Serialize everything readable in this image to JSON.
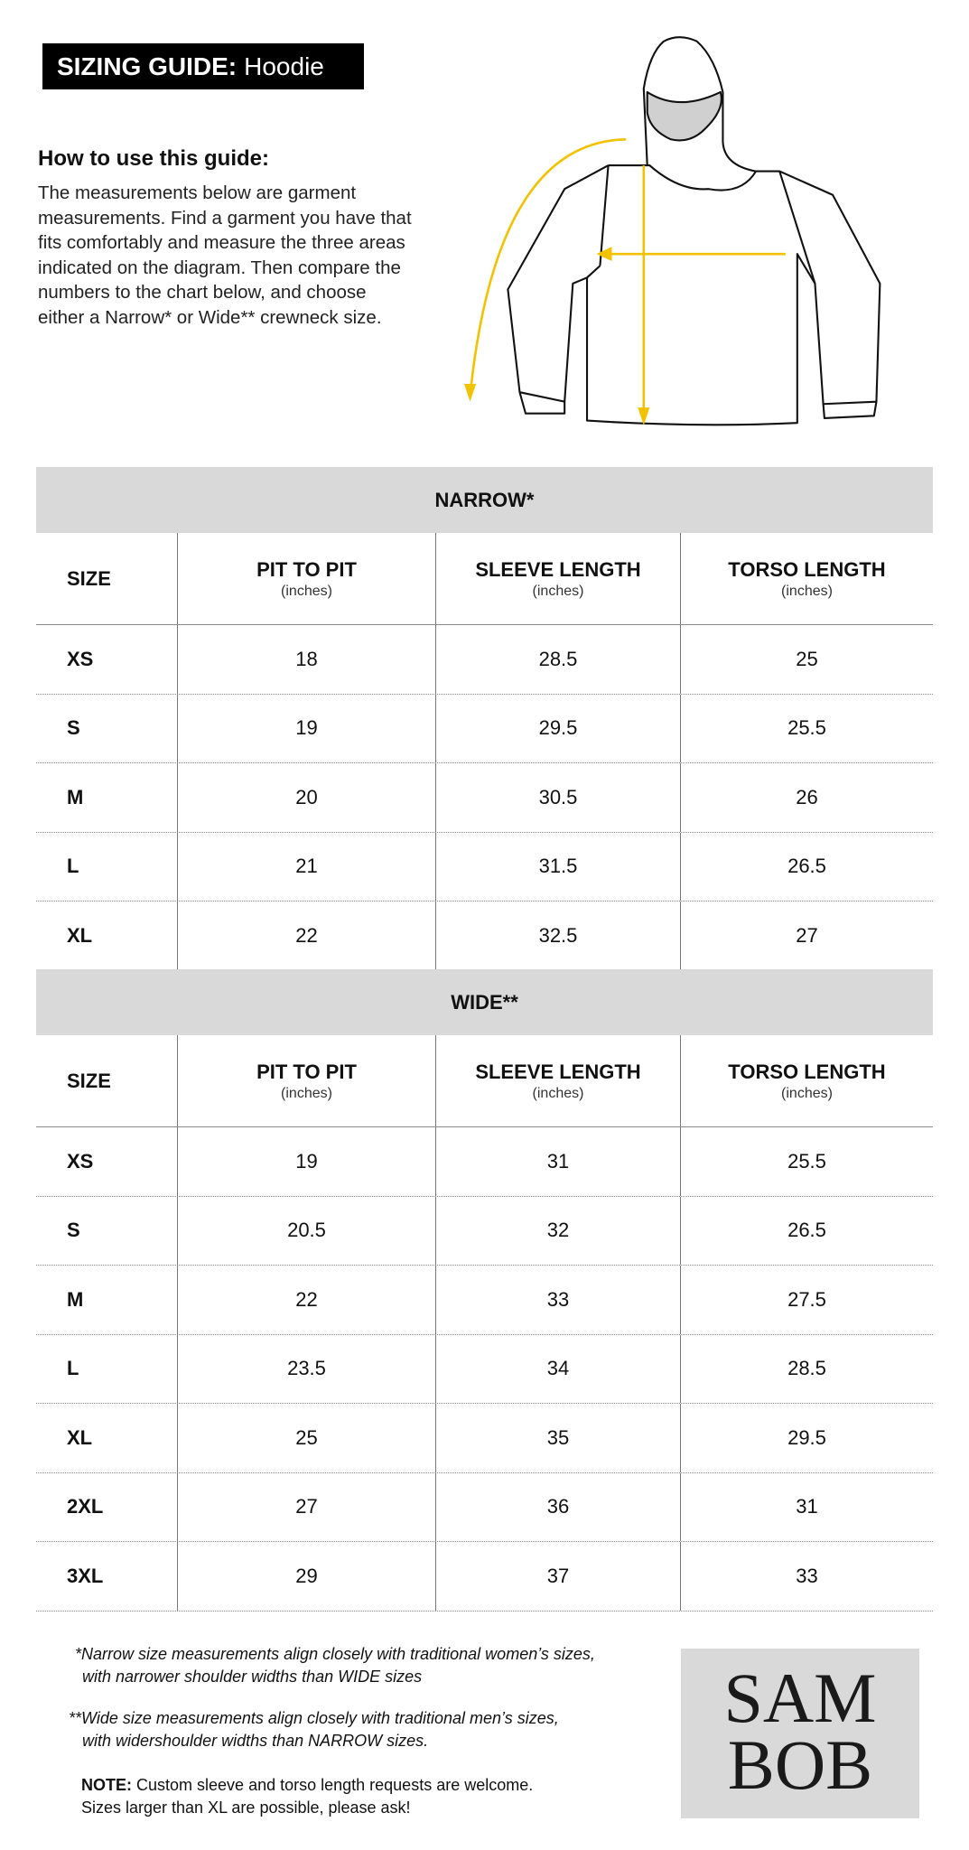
{
  "header": {
    "title_bold": "SIZING GUIDE:",
    "title_rest": "Hoodie"
  },
  "intro": {
    "heading": "How to use this guide:",
    "body": "The measurements below are garment measurements. Find a garment you have that fits comfortably and measure the three areas indicated on the diagram. Then compare the numbers to the chart below, and choose either a Narrow* or Wide** crewneck size."
  },
  "colors": {
    "arrow": "#f2c200",
    "band": "#d9d9d9"
  },
  "columns": {
    "size": "SIZE",
    "pit": "PIT TO PIT",
    "sleeve": "SLEEVE LENGTH",
    "torso": "TORSO LENGTH",
    "unit": "(inches)"
  },
  "narrow": {
    "title": "NARROW*",
    "rows": [
      [
        "XS",
        "18",
        "28.5",
        "25"
      ],
      [
        "S",
        "19",
        "29.5",
        "25.5"
      ],
      [
        "M",
        "20",
        "30.5",
        "26"
      ],
      [
        "L",
        "21",
        "31.5",
        "26.5"
      ],
      [
        "XL",
        "22",
        "32.5",
        "27"
      ]
    ]
  },
  "wide": {
    "title": "WIDE**",
    "rows": [
      [
        "XS",
        "19",
        "31",
        "25.5"
      ],
      [
        "S",
        "20.5",
        "32",
        "26.5"
      ],
      [
        "M",
        "22",
        "33",
        "27.5"
      ],
      [
        "L",
        "23.5",
        "34",
        "28.5"
      ],
      [
        "XL",
        "25",
        "35",
        "29.5"
      ],
      [
        "2XL",
        "27",
        "36",
        "31"
      ],
      [
        "3XL",
        "29",
        "37",
        "33"
      ]
    ]
  },
  "footnotes": {
    "narrow_l1": "*Narrow size measurements align closely with traditional women’s sizes,",
    "narrow_l2": "with narrower shoulder widths than WIDE sizes",
    "wide_l1": "**Wide size measurements align closely with traditional men’s sizes,",
    "wide_l2": "with widershoulder widths than NARROW sizes.",
    "note_label": "NOTE:",
    "note_l1": "Custom sleeve and torso length requests are welcome.",
    "note_l2": "Sizes larger than XL are possible, please ask!"
  },
  "logo": {
    "line1": "SAM",
    "line2": "BOB"
  }
}
